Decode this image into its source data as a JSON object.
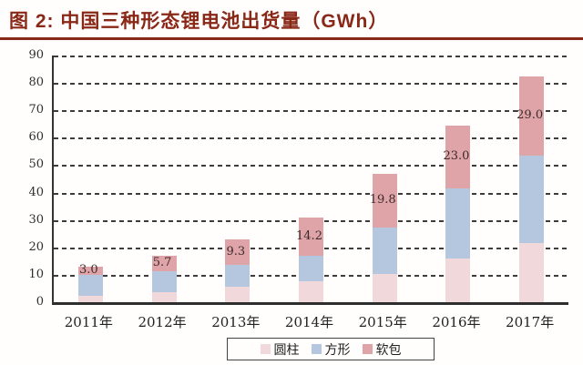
{
  "title": "图 2: 中国三种形态锂电池出货量（GWh）",
  "accent_color": "#8a2818",
  "chart_data": {
    "type": "bar",
    "stacked": true,
    "title": "图 2: 中国三种形态锂电池出货量（GWh）",
    "unit": "GWh",
    "categories": [
      "2011年",
      "2012年",
      "2013年",
      "2014年",
      "2015年",
      "2016年",
      "2017年"
    ],
    "series": [
      {
        "name": "圆柱",
        "key": "cylindrical",
        "color": "#f1d8da",
        "values": [
          2.3,
          3.8,
          5.8,
          7.6,
          10.2,
          16.0,
          21.5
        ]
      },
      {
        "name": "方形",
        "key": "prismatic",
        "color": "#b5c7df",
        "values": [
          7.7,
          7.5,
          7.7,
          9.2,
          17.0,
          25.5,
          32.0
        ]
      },
      {
        "name": "软包",
        "key": "pouch",
        "color": "#dfa4a8",
        "values": [
          3.0,
          5.7,
          9.3,
          14.2,
          19.8,
          23.0,
          29.0
        ]
      }
    ],
    "totals": [
      13.0,
      17.0,
      22.8,
      31.0,
      47.0,
      64.5,
      82.5
    ],
    "data_labels": {
      "series": "软包",
      "values": [
        "3.0",
        "5.7",
        "9.3",
        "14.2",
        "19.8",
        "23.0",
        "29.0"
      ]
    },
    "ylim": [
      0,
      90
    ],
    "yticks": [
      "0",
      "10",
      "20",
      "30",
      "40",
      "50",
      "60",
      "70",
      "80",
      "90"
    ],
    "grid": "horizontal-dashed",
    "legend_position": "bottom",
    "xlabel": "",
    "ylabel": ""
  }
}
